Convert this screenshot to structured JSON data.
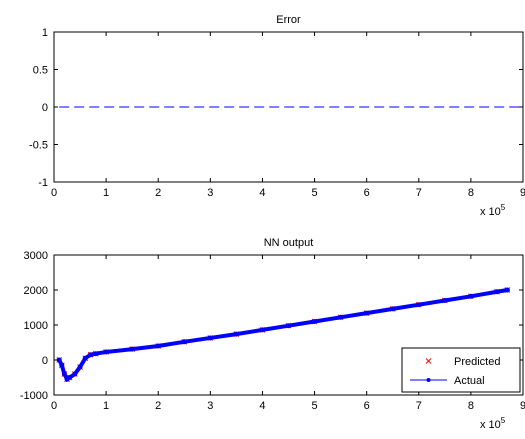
{
  "chart_data": [
    {
      "type": "line",
      "title": "Error",
      "xlabel": "",
      "ylabel": "",
      "xlim": [
        0,
        9
      ],
      "ylim": [
        -1,
        1
      ],
      "xticks": [
        "0",
        "1",
        "2",
        "3",
        "4",
        "5",
        "6",
        "7",
        "8",
        "9"
      ],
      "yticks": [
        "-1",
        "-0.5",
        "0",
        "0.5",
        "1"
      ],
      "x_multiplier": "x 10",
      "x_multiplier_exponent": "5",
      "series": [
        {
          "line_style": "dashed",
          "color": "#0000ff",
          "x": [
            0.1,
            9
          ],
          "y": [
            0,
            0
          ]
        }
      ]
    },
    {
      "type": "line",
      "title": "NN output",
      "xlabel": "",
      "ylabel": "",
      "xlim": [
        0,
        9
      ],
      "ylim": [
        -1000,
        3000
      ],
      "xticks": [
        "0",
        "1",
        "2",
        "3",
        "4",
        "5",
        "6",
        "7",
        "8",
        "9"
      ],
      "yticks": [
        "-1000",
        "0",
        "1000",
        "2000",
        "3000"
      ],
      "x_multiplier": "x 10",
      "x_multiplier_exponent": "5",
      "legend_position": "bottom-right",
      "series": [
        {
          "name": "Predicted",
          "marker": "x",
          "color": "#ff0000",
          "x": [
            0.1,
            0.15,
            0.2,
            0.25,
            0.3,
            0.4,
            0.5,
            0.6,
            0.7,
            0.8,
            1,
            1.5,
            2,
            2.5,
            3,
            3.5,
            4,
            4.5,
            5,
            5.5,
            6,
            6.5,
            7,
            7.5,
            8,
            8.5,
            8.7
          ],
          "y": [
            0,
            -150,
            -400,
            -550,
            -500,
            -400,
            -200,
            50,
            150,
            180,
            230,
            310,
            400,
            520,
            630,
            740,
            860,
            980,
            1100,
            1220,
            1340,
            1460,
            1580,
            1700,
            1820,
            1950,
            2000
          ]
        },
        {
          "name": "Actual",
          "marker": ".",
          "color": "#0000ff",
          "x": [
            0.1,
            0.15,
            0.2,
            0.25,
            0.3,
            0.4,
            0.5,
            0.6,
            0.7,
            0.8,
            1,
            1.5,
            2,
            2.5,
            3,
            3.5,
            4,
            4.5,
            5,
            5.5,
            6,
            6.5,
            7,
            7.5,
            8,
            8.5,
            8.7
          ],
          "y": [
            0,
            -150,
            -400,
            -550,
            -500,
            -400,
            -200,
            50,
            150,
            180,
            230,
            310,
            400,
            520,
            630,
            740,
            860,
            980,
            1100,
            1220,
            1340,
            1460,
            1580,
            1700,
            1820,
            1950,
            2000
          ]
        }
      ]
    }
  ]
}
